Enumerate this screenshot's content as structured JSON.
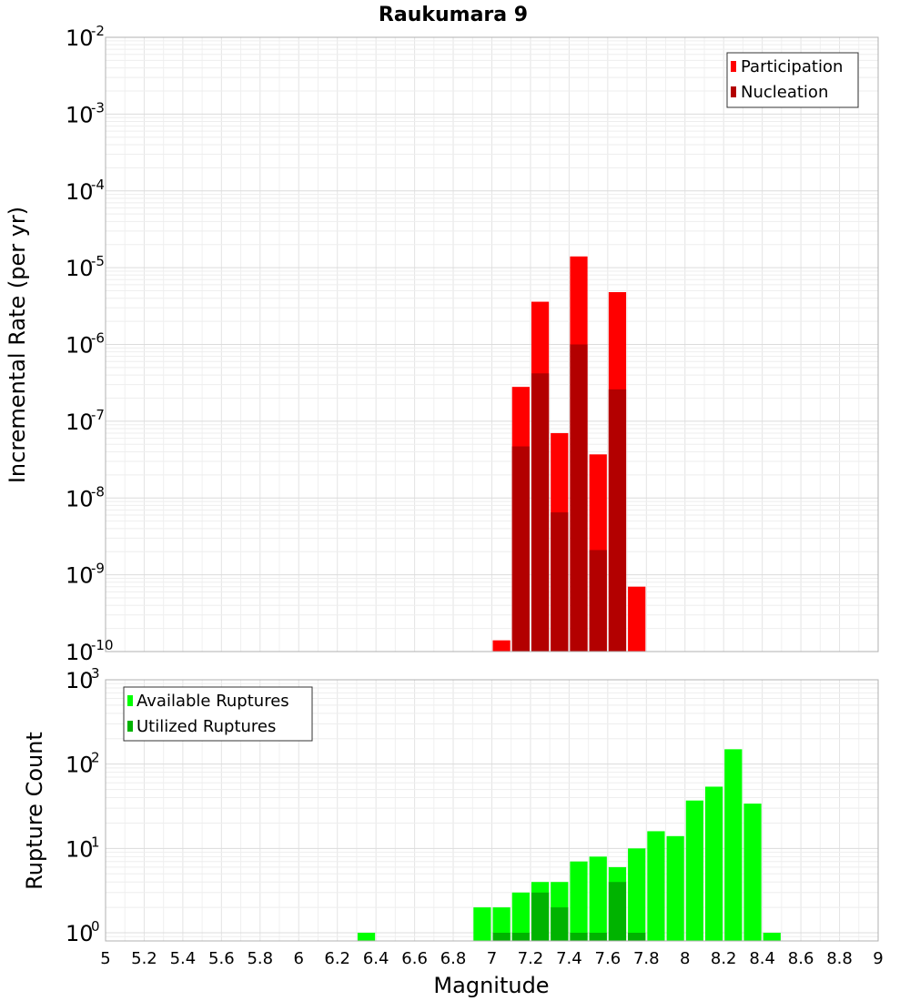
{
  "chart_data": [
    {
      "type": "bar",
      "title": "Raukumara 9",
      "xlabel": "Magnitude",
      "ylabel": "Incremental Rate (per yr)",
      "y_scale": "log",
      "ylim": [
        1e-10,
        0.01
      ],
      "xlim": [
        5,
        9
      ],
      "grid": true,
      "legend_position": "top-right",
      "bar_width": 0.1,
      "x": [
        7.05,
        7.15,
        7.25,
        7.35,
        7.45,
        7.55,
        7.65,
        7.75
      ],
      "series": [
        {
          "name": "Participation",
          "color": "#ff0000",
          "values": [
            1.4e-10,
            2.8e-07,
            3.6e-06,
            7e-08,
            1.4e-05,
            3.7e-08,
            4.8e-06,
            7e-10
          ]
        },
        {
          "name": "Nucleation",
          "color": "#b30000",
          "values": [
            null,
            4.7e-08,
            4.2e-07,
            6.5e-09,
            1e-06,
            2.1e-09,
            2.6e-07,
            null
          ]
        }
      ]
    },
    {
      "type": "bar",
      "xlabel": "Magnitude",
      "ylabel": "Rupture Count",
      "y_scale": "log",
      "ylim": [
        0.8,
        1000
      ],
      "xlim": [
        5,
        9
      ],
      "grid": true,
      "legend_position": "top-left",
      "bar_width": 0.1,
      "x": [
        6.35,
        6.95,
        7.05,
        7.15,
        7.25,
        7.35,
        7.45,
        7.55,
        7.65,
        7.75,
        7.85,
        7.95,
        8.05,
        8.15,
        8.25,
        8.35,
        8.45
      ],
      "series": [
        {
          "name": "Available Ruptures",
          "color": "#00ff00",
          "values": [
            1,
            2,
            2,
            3,
            4,
            4,
            7,
            8,
            6,
            10,
            16,
            14,
            37,
            54,
            150,
            34,
            1
          ]
        },
        {
          "name": "Utilized Ruptures",
          "color": "#00b300",
          "values": [
            null,
            null,
            1,
            1,
            3,
            2,
            1,
            1,
            4,
            1,
            null,
            null,
            null,
            null,
            null,
            null,
            null
          ]
        }
      ]
    }
  ],
  "x_ticks": [
    "5",
    "5.2",
    "5.4",
    "5.6",
    "5.8",
    "6",
    "6.2",
    "6.4",
    "6.6",
    "6.8",
    "7",
    "7.2",
    "7.4",
    "7.6",
    "7.8",
    "8",
    "8.2",
    "8.4",
    "8.6",
    "8.8",
    "9"
  ],
  "top_y_ticks": [
    {
      "base": "10",
      "exp": "-10"
    },
    {
      "base": "10",
      "exp": "-9"
    },
    {
      "base": "10",
      "exp": "-8"
    },
    {
      "base": "10",
      "exp": "-7"
    },
    {
      "base": "10",
      "exp": "-6"
    },
    {
      "base": "10",
      "exp": "-5"
    },
    {
      "base": "10",
      "exp": "-4"
    },
    {
      "base": "10",
      "exp": "-3"
    },
    {
      "base": "10",
      "exp": "-2"
    }
  ],
  "bottom_y_ticks": [
    {
      "base": "10",
      "exp": "0"
    },
    {
      "base": "10",
      "exp": "1"
    },
    {
      "base": "10",
      "exp": "2"
    },
    {
      "base": "10",
      "exp": "3"
    }
  ]
}
